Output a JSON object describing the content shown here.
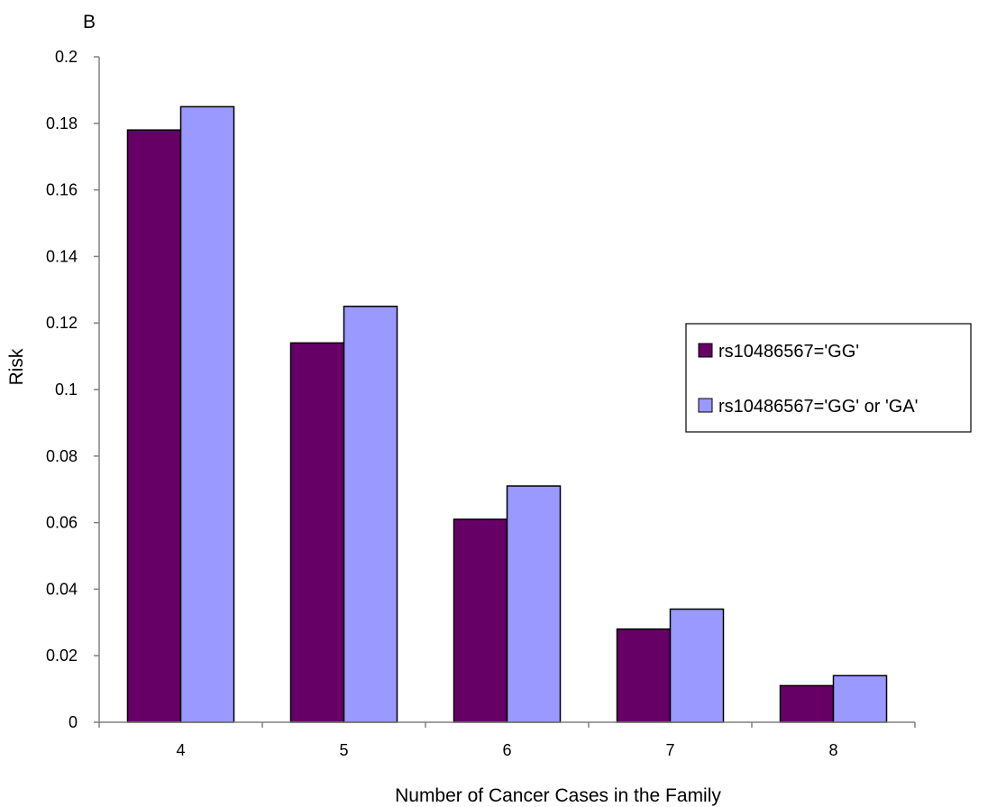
{
  "panel_label": "B",
  "colors": {
    "series_1": "#660066",
    "series_2": "#9999ff",
    "axis": "#808080",
    "bar_stroke": "#000000"
  },
  "chart_data": {
    "type": "bar",
    "title": "",
    "xlabel": "Number of Cancer Cases in the Family",
    "ylabel": "Risk",
    "categories": [
      "4",
      "5",
      "6",
      "7",
      "8"
    ],
    "ylim": [
      0,
      0.2
    ],
    "yticks": [
      "0",
      "0.02",
      "0.04",
      "0.06",
      "0.08",
      "0.1",
      "0.12",
      "0.14",
      "0.16",
      "0.18",
      "0.2"
    ],
    "grid": false,
    "legend_position": "right",
    "series": [
      {
        "name": "rs10486567='GG'",
        "color": "#660066",
        "values": [
          0.178,
          0.114,
          0.061,
          0.028,
          0.011
        ]
      },
      {
        "name": "rs10486567='GG' or 'GA'",
        "color": "#9999ff",
        "values": [
          0.185,
          0.125,
          0.071,
          0.034,
          0.014
        ]
      }
    ]
  }
}
